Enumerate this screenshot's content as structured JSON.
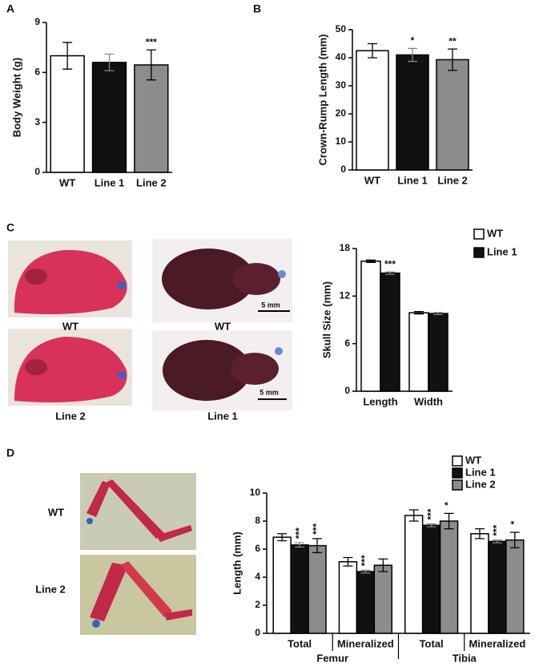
{
  "panel_labels": [
    "A",
    "B",
    "C",
    "D"
  ],
  "photo_labels": {
    "skull_side": [
      "WT",
      "Line 2"
    ],
    "skull_top": [
      "WT",
      "Line 1"
    ],
    "scale_bar": [
      "5 mm",
      "5 mm"
    ],
    "limb": [
      "WT",
      "Line 2"
    ]
  },
  "chart_data": [
    {
      "type": "bar",
      "ylabel": "Body Weight (g)",
      "categories": [
        "WT",
        "Line 1",
        "Line 2"
      ],
      "values": [
        7.0,
        6.6,
        6.45
      ],
      "errors": [
        0.8,
        0.5,
        0.9
      ],
      "colors": [
        "#ffffff",
        "#111111",
        "#8c8c8c"
      ],
      "significance": [
        null,
        null,
        "***"
      ],
      "ylim": [
        0,
        9
      ],
      "yticks": [
        0,
        3,
        6,
        9
      ]
    },
    {
      "type": "bar",
      "ylabel": "Crown-Rump Length (mm)",
      "categories": [
        "WT",
        "Line 1",
        "Line 2"
      ],
      "values": [
        42.5,
        41.0,
        39.3
      ],
      "errors": [
        2.5,
        2.3,
        3.8
      ],
      "colors": [
        "#ffffff",
        "#111111",
        "#8c8c8c"
      ],
      "significance": [
        null,
        "*",
        "**"
      ],
      "ylim": [
        0,
        50
      ],
      "yticks": [
        0,
        10,
        20,
        30,
        40,
        50
      ]
    },
    {
      "type": "bar",
      "ylabel": "Skull Size (mm)",
      "categories": [
        "Length",
        "Width"
      ],
      "series": [
        {
          "name": "WT",
          "color": "#ffffff",
          "values": [
            16.4,
            9.9
          ],
          "errors": [
            0.15,
            0.15
          ],
          "significance": [
            null,
            null
          ]
        },
        {
          "name": "Line 1",
          "color": "#111111",
          "values": [
            14.9,
            9.8
          ],
          "errors": [
            0.15,
            0.12
          ],
          "significance": [
            "***",
            null
          ]
        }
      ],
      "ylim": [
        0,
        18
      ],
      "yticks": [
        0,
        6,
        12,
        18
      ],
      "legend": "upper right"
    },
    {
      "type": "bar",
      "ylabel": "Length (mm)",
      "categories": [
        "Total",
        "Mineralized",
        "Total",
        "Mineralized"
      ],
      "group_labels": [
        "Femur",
        "Tibia"
      ],
      "series": [
        {
          "name": "WT",
          "color": "#ffffff",
          "values": [
            6.85,
            5.1,
            8.4,
            7.1
          ],
          "errors": [
            0.25,
            0.3,
            0.4,
            0.35
          ],
          "significance": [
            null,
            null,
            null,
            null
          ]
        },
        {
          "name": "Line 1",
          "color": "#111111",
          "values": [
            6.3,
            4.4,
            7.7,
            6.55
          ],
          "errors": [
            0.15,
            0.1,
            0.1,
            0.1
          ],
          "significance": [
            "***",
            "***",
            "***",
            "***"
          ]
        },
        {
          "name": "Line 2",
          "color": "#8c8c8c",
          "values": [
            6.25,
            4.85,
            8.0,
            6.65
          ],
          "errors": [
            0.5,
            0.45,
            0.55,
            0.55
          ],
          "significance": [
            "***",
            null,
            "*",
            "*"
          ]
        }
      ],
      "ylim": [
        0,
        10
      ],
      "yticks": [
        0,
        2,
        4,
        6,
        8,
        10
      ],
      "legend": "upper right",
      "annotation_orientation": "vertical"
    }
  ]
}
